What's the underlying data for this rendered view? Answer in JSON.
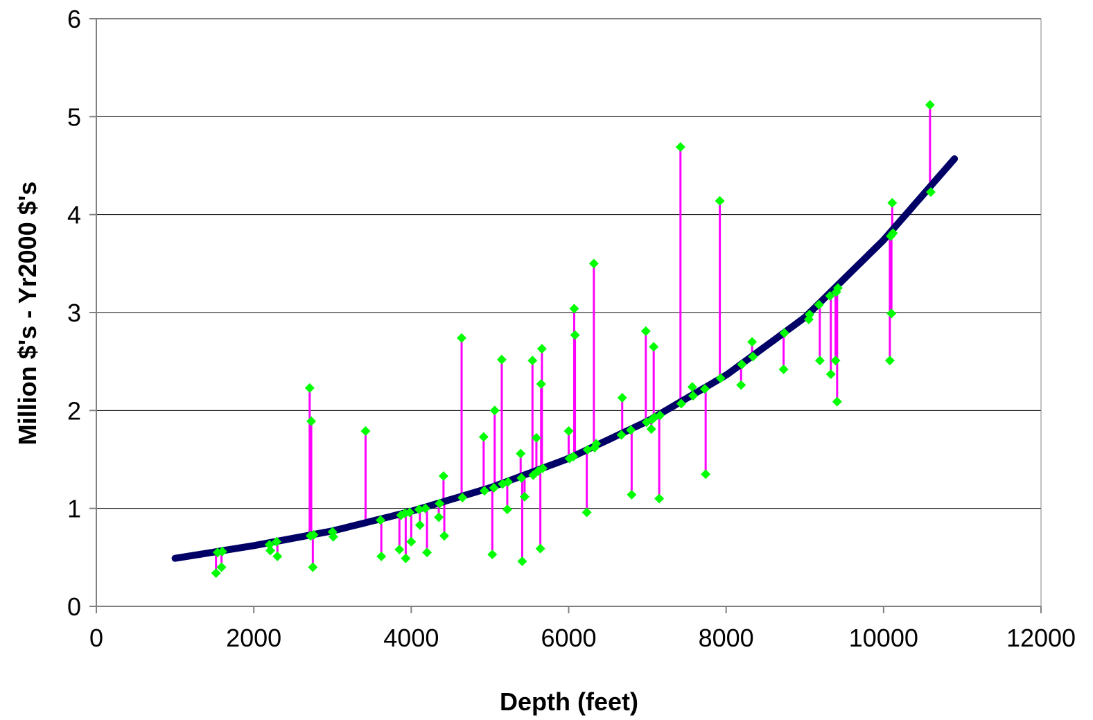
{
  "chart_data": {
    "type": "scatter",
    "title": "",
    "xlabel": "Depth (feet)",
    "ylabel": "Million $'s - Yr2000 $'s",
    "xlim": [
      0,
      12000
    ],
    "ylim": [
      0,
      6
    ],
    "x_ticks": [
      0,
      2000,
      4000,
      6000,
      8000,
      10000,
      12000
    ],
    "y_ticks": [
      0,
      1,
      2,
      3,
      4,
      5,
      6
    ],
    "grid": "horizontal",
    "legend": "none",
    "colors": {
      "trend": "#000066",
      "points": "#00ff00",
      "residuals": "#ff00ff",
      "grid": "#000000",
      "axes": "#808080"
    },
    "trend_curve": {
      "x": [
        1000,
        2000,
        3000,
        4000,
        5000,
        6000,
        7000,
        8000,
        9000,
        10000,
        10900
      ],
      "y": [
        0.49,
        0.62,
        0.77,
        0.97,
        1.21,
        1.51,
        1.89,
        2.36,
        2.95,
        3.74,
        4.57
      ]
    },
    "series": [
      {
        "x": [
          1520,
          1540,
          1590,
          1600,
          2200,
          2210,
          2290,
          2300,
          2710,
          2720,
          2730,
          2750,
          2760,
          3000,
          3010,
          3420,
          3610,
          3620,
          3850,
          3870,
          3920,
          3930,
          3980,
          4000,
          4100,
          4110,
          4180,
          4200,
          4350,
          4360,
          4410,
          4420,
          4640,
          4650,
          4920,
          4930,
          5030,
          5050,
          5060,
          5150,
          5160,
          5220,
          5230,
          5390,
          5400,
          5410,
          5440,
          5540,
          5550,
          5590,
          5610,
          5640,
          5650,
          5660,
          5670,
          6000,
          6010,
          6060,
          6070,
          6080,
          6230,
          6240,
          6320,
          6330,
          6350,
          6670,
          6680,
          6790,
          6800,
          6980,
          6990,
          7050,
          7060,
          7080,
          7090,
          7150,
          7160,
          7420,
          7430,
          7570,
          7580,
          7730,
          7740,
          7920,
          7930,
          8190,
          8200,
          8330,
          8340,
          8730,
          8740,
          9050,
          9060,
          9180,
          9190,
          9320,
          9330,
          9390,
          9400,
          9410,
          9420,
          10080,
          10090,
          10100,
          10110,
          10120,
          10590,
          10600
        ],
        "y": [
          0.34,
          0.55,
          0.4,
          0.56,
          0.63,
          0.57,
          0.66,
          0.51,
          2.23,
          0.72,
          1.89,
          0.4,
          0.73,
          0.76,
          0.71,
          1.79,
          0.88,
          0.51,
          0.58,
          0.93,
          0.95,
          0.49,
          0.96,
          0.66,
          0.99,
          0.83,
          1.0,
          0.55,
          0.91,
          1.05,
          1.33,
          0.72,
          2.74,
          1.11,
          1.73,
          1.18,
          0.53,
          1.21,
          2.0,
          2.52,
          1.25,
          0.99,
          1.27,
          1.56,
          1.31,
          0.46,
          1.12,
          2.51,
          1.34,
          1.72,
          1.38,
          0.59,
          2.27,
          2.63,
          1.41,
          1.79,
          1.51,
          1.53,
          3.04,
          2.77,
          0.96,
          1.6,
          3.5,
          1.62,
          1.66,
          1.75,
          2.13,
          1.8,
          1.14,
          2.81,
          1.88,
          1.81,
          1.91,
          2.65,
          1.93,
          1.1,
          1.95,
          4.69,
          2.07,
          2.24,
          2.15,
          2.22,
          1.35,
          4.14,
          2.33,
          2.26,
          2.47,
          2.7,
          2.55,
          2.42,
          2.79,
          2.93,
          2.98,
          3.08,
          2.51,
          3.17,
          2.37,
          2.51,
          3.21,
          2.09,
          3.25,
          2.51,
          3.78,
          2.99,
          4.12,
          3.81,
          5.12,
          4.23
        ]
      }
    ]
  }
}
